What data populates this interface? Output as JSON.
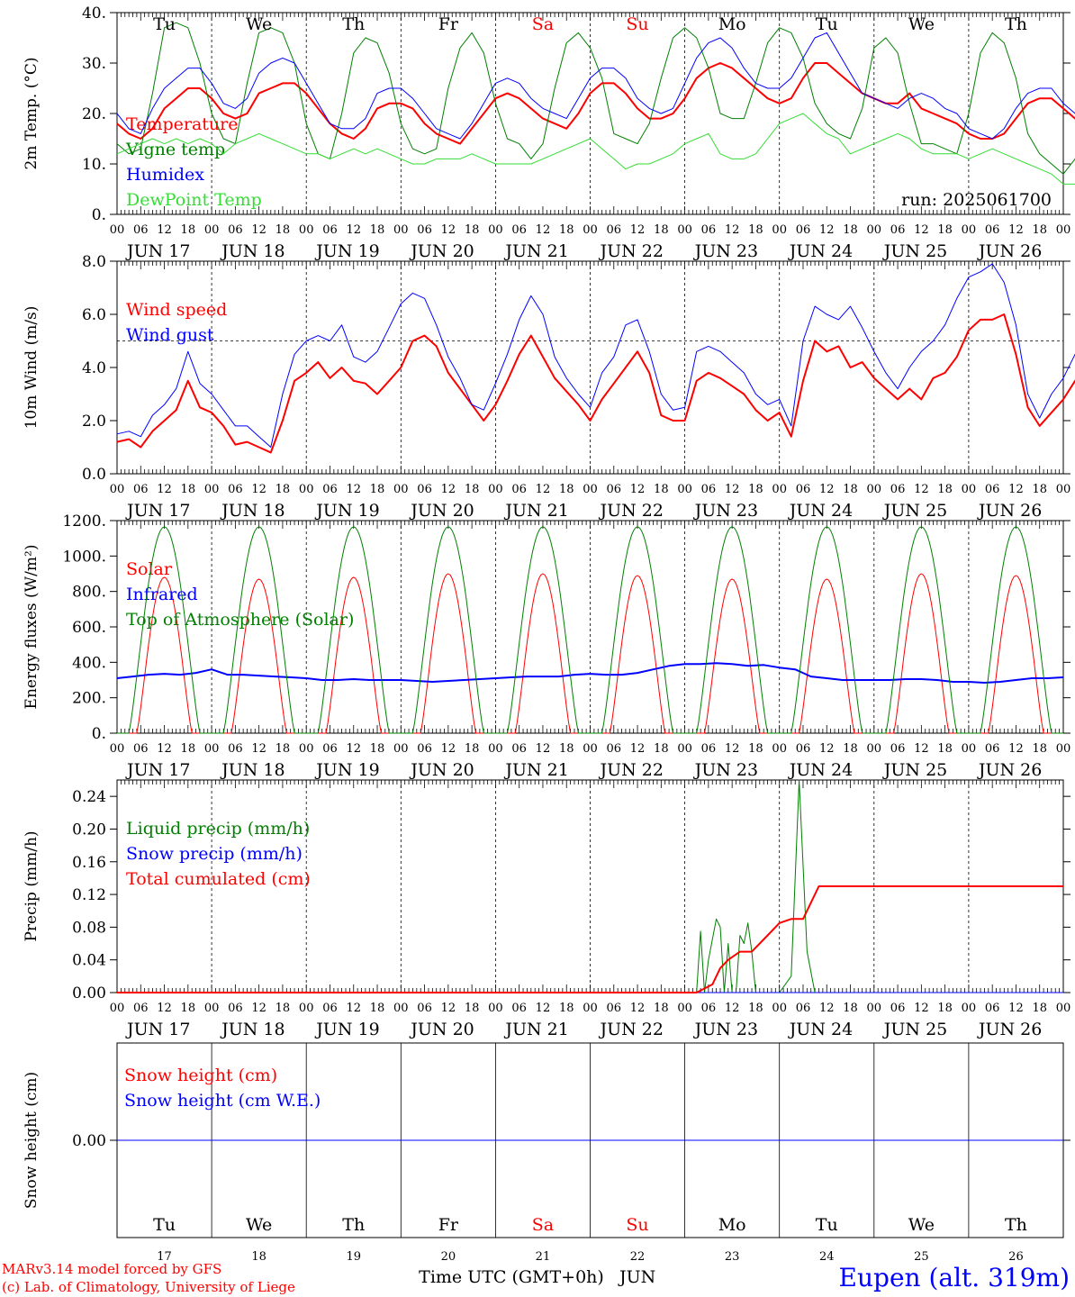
{
  "meta": {
    "run_label": "run: 2025061700",
    "credit_line1": "MARv3.14 model forced by GFS",
    "credit_line2": "(c) Lab. of Climatology, University of Liege",
    "xlabel": "Time UTC (GMT+0h)",
    "xlabel_month": "JUN",
    "station": "Eupen (alt. 319m)"
  },
  "days": {
    "weekday": [
      "Tu",
      "We",
      "Th",
      "Fr",
      "Sa",
      "Su",
      "Mo",
      "Tu",
      "We",
      "Th"
    ],
    "weekend": [
      false,
      false,
      false,
      false,
      true,
      true,
      false,
      false,
      false,
      false
    ],
    "date_labels": [
      "JUN 17",
      "JUN 18",
      "JUN 19",
      "JUN 20",
      "JUN 21",
      "JUN 22",
      "JUN 23",
      "JUN 24",
      "JUN 25",
      "JUN 26"
    ],
    "day_numbers": [
      "17",
      "18",
      "19",
      "20",
      "21",
      "22",
      "23",
      "24",
      "25",
      "26"
    ],
    "hour_labels": [
      "00",
      "06",
      "12",
      "18"
    ],
    "final_hour_label": "00"
  },
  "colors": {
    "red": "#ff0000",
    "green": "#007f00",
    "blue": "#0000ff",
    "lightgreen": "#33dd33",
    "weekend": "#ff0000",
    "axis": "#000000"
  },
  "chart_data": [
    {
      "type": "line",
      "ylabel": "2m Temp. (°C)",
      "ylim": [
        0,
        40
      ],
      "yticks": [
        "0.",
        "10.",
        "20.",
        "30.",
        "40."
      ],
      "yticks_values": [
        0,
        10,
        20,
        30,
        40
      ],
      "grid": "vertical dashed at midnight",
      "legend_position": "top-left",
      "x_hours_step": 3,
      "series": [
        {
          "name": "Temperature",
          "color": "red",
          "width": 2,
          "values": [
            18,
            16,
            15,
            17,
            21,
            23,
            25,
            25,
            23,
            20,
            19,
            20,
            24,
            25,
            26,
            26,
            24,
            21,
            18,
            16,
            15,
            17,
            21,
            22,
            22,
            21,
            18,
            16,
            15,
            14,
            17,
            20,
            23,
            24,
            23,
            21,
            19,
            18,
            17,
            20,
            24,
            26,
            26,
            24,
            21,
            19,
            19,
            20,
            23,
            27,
            29,
            30,
            29,
            27,
            25,
            23,
            22,
            23,
            27,
            30,
            30,
            28,
            26,
            24,
            23,
            22,
            22,
            24,
            21,
            20,
            19,
            18,
            16,
            15,
            15,
            16,
            19,
            22,
            23,
            23,
            21,
            19,
            18,
            16,
            13,
            12,
            14,
            18,
            22,
            25,
            24,
            21,
            18
          ]
        },
        {
          "name": "Vigne temp",
          "color": "green",
          "width": 1,
          "values": [
            14,
            12,
            13,
            24,
            37,
            38,
            37,
            30,
            20,
            15,
            14,
            26,
            36,
            37,
            36,
            30,
            18,
            12,
            11,
            20,
            32,
            35,
            34,
            28,
            18,
            13,
            12,
            13,
            25,
            33,
            36,
            32,
            22,
            15,
            14,
            11,
            14,
            25,
            34,
            36,
            33,
            27,
            16,
            15,
            14,
            18,
            27,
            35,
            37,
            35,
            29,
            20,
            19,
            19,
            26,
            34,
            37,
            36,
            31,
            22,
            18,
            16,
            15,
            21,
            33,
            35,
            32,
            22,
            14,
            14,
            13,
            12,
            20,
            32,
            36,
            34,
            27,
            16,
            12,
            10,
            8,
            11,
            18,
            30,
            37,
            36,
            28,
            17,
            14
          ]
        },
        {
          "name": "Humidex",
          "color": "blue",
          "width": 1,
          "values": [
            20,
            17,
            16,
            21,
            25,
            27,
            29,
            29,
            26,
            22,
            21,
            23,
            28,
            30,
            31,
            30,
            26,
            22,
            18,
            17,
            17,
            19,
            24,
            25,
            25,
            23,
            20,
            17,
            16,
            15,
            18,
            22,
            26,
            27,
            26,
            23,
            21,
            20,
            19,
            23,
            27,
            29,
            29,
            27,
            23,
            21,
            20,
            21,
            26,
            31,
            34,
            35,
            33,
            29,
            26,
            25,
            25,
            27,
            31,
            35,
            36,
            32,
            28,
            24,
            23,
            22,
            21,
            23,
            24,
            23,
            21,
            20,
            17,
            16,
            15,
            17,
            21,
            24,
            25,
            25,
            22,
            20,
            18,
            16,
            13,
            13,
            15,
            20,
            24,
            26,
            25,
            22,
            18
          ]
        },
        {
          "name": "DewPoint Temp",
          "color": "lightgreen",
          "width": 1,
          "values": [
            12,
            13,
            14,
            15,
            14,
            15,
            14,
            15,
            14,
            12,
            14,
            15,
            16,
            15,
            14,
            13,
            12,
            12,
            11,
            12,
            13,
            12,
            13,
            12,
            11,
            10,
            10,
            11,
            11,
            11,
            12,
            11,
            10,
            10,
            10,
            10,
            11,
            12,
            13,
            14,
            15,
            13,
            11,
            9,
            10,
            10,
            11,
            12,
            14,
            15,
            16,
            12,
            11,
            11,
            12,
            15,
            18,
            19,
            20,
            18,
            16,
            15,
            12,
            13,
            14,
            15,
            16,
            15,
            13,
            12,
            12,
            12,
            11,
            12,
            13,
            12,
            11,
            10,
            9,
            8,
            6,
            6,
            8,
            9,
            10,
            9,
            10,
            9,
            8
          ]
        }
      ]
    },
    {
      "type": "line",
      "ylabel": "10m Wind (m/s)",
      "ylim": [
        0,
        8
      ],
      "yticks": [
        "0.0",
        "2.0",
        "4.0",
        "6.0",
        "8.0"
      ],
      "yticks_values": [
        0,
        2,
        4,
        6,
        8
      ],
      "reference_line": 5,
      "grid": "vertical dashed at midnight",
      "legend_position": "top-left",
      "x_hours_step": 3,
      "series": [
        {
          "name": "Wind speed",
          "color": "red",
          "width": 2,
          "values": [
            1.2,
            1.3,
            1.0,
            1.6,
            2.0,
            2.4,
            3.5,
            2.5,
            2.3,
            1.8,
            1.1,
            1.2,
            1.0,
            0.8,
            2.0,
            3.5,
            3.8,
            4.2,
            3.6,
            4.0,
            3.5,
            3.4,
            3.0,
            3.5,
            4.0,
            5.0,
            5.2,
            4.8,
            3.8,
            3.2,
            2.6,
            2.0,
            2.6,
            3.5,
            4.5,
            5.2,
            4.4,
            3.6,
            3.1,
            2.6,
            2.0,
            2.8,
            3.4,
            4.0,
            4.6,
            3.8,
            2.2,
            2.0,
            2.0,
            3.5,
            3.8,
            3.6,
            3.3,
            3.0,
            2.4,
            2.0,
            2.3,
            1.4,
            3.5,
            5.0,
            4.6,
            4.8,
            4.0,
            4.2,
            3.6,
            3.2,
            2.8,
            3.2,
            2.8,
            3.6,
            3.8,
            4.4,
            5.4,
            5.8,
            5.8,
            6.0,
            4.5,
            2.5,
            1.8,
            2.3,
            2.8,
            3.5,
            4.0,
            4.5,
            5.1,
            4.0,
            2.6,
            1.5,
            1.3,
            1.7,
            2.2,
            2.6,
            3.0,
            3.5,
            4.4,
            3.2,
            2.0,
            1.8
          ]
        },
        {
          "name": "Wind gust",
          "color": "blue",
          "width": 1,
          "values": [
            1.5,
            1.6,
            1.4,
            2.2,
            2.6,
            3.2,
            4.6,
            3.4,
            3.0,
            2.4,
            1.8,
            1.8,
            1.4,
            1.0,
            3.0,
            4.5,
            5.0,
            5.2,
            5.0,
            5.6,
            4.4,
            4.2,
            4.6,
            5.5,
            6.4,
            6.8,
            6.6,
            5.6,
            4.4,
            3.6,
            2.6,
            2.4,
            3.4,
            4.5,
            5.8,
            6.7,
            6.0,
            4.4,
            3.6,
            3.0,
            2.5,
            3.8,
            4.4,
            5.6,
            5.8,
            4.6,
            3.0,
            2.4,
            2.5,
            4.6,
            4.8,
            4.6,
            4.2,
            3.8,
            3.0,
            2.6,
            2.8,
            1.8,
            5.0,
            6.3,
            6.0,
            5.8,
            6.3,
            5.5,
            4.6,
            3.8,
            3.2,
            4.0,
            4.6,
            5.0,
            5.6,
            6.6,
            7.4,
            7.6,
            7.9,
            7.2,
            5.6,
            3.0,
            2.1,
            3.0,
            3.6,
            4.5,
            5.4,
            6.2,
            6.6,
            5.2,
            3.6,
            1.8,
            1.6,
            2.3,
            3.0,
            3.5,
            4.0,
            4.6,
            5.8,
            4.6,
            3.0,
            2.2
          ]
        }
      ]
    },
    {
      "type": "line",
      "ylabel": "Energy fluxes (W/m²)",
      "ylim": [
        0,
        1200
      ],
      "yticks": [
        "0.",
        "200.",
        "400.",
        "600.",
        "800.",
        "1000.",
        "1200."
      ],
      "yticks_values": [
        0,
        200,
        400,
        600,
        800,
        1000,
        1200
      ],
      "grid": "vertical dashed at midnight",
      "legend_position": "top-left",
      "series": [
        {
          "name": "Solar",
          "color": "red",
          "width": 1,
          "daily_peak": [
            880,
            870,
            880,
            900,
            900,
            890,
            870,
            870,
            900,
            890
          ],
          "day_length_hours": [
            5,
            19
          ]
        },
        {
          "name": "Infrared",
          "color": "blue",
          "width": 2,
          "values_every_6h": [
            310,
            320,
            330,
            335,
            330,
            340,
            360,
            330,
            330,
            325,
            320,
            315,
            310,
            300,
            300,
            305,
            300,
            300,
            300,
            295,
            290,
            295,
            300,
            305,
            310,
            315,
            320,
            320,
            320,
            330,
            335,
            330,
            330,
            340,
            360,
            380,
            390,
            390,
            395,
            390,
            380,
            385,
            370,
            360,
            320,
            310,
            300,
            300,
            300,
            300,
            305,
            305,
            300,
            290,
            290,
            285,
            290,
            300,
            310,
            310,
            315
          ]
        },
        {
          "name": "Top of Atmosphere (Solar)",
          "color": "green",
          "width": 1,
          "daily_peak": [
            1165,
            1165,
            1165,
            1165,
            1165,
            1165,
            1165,
            1165,
            1165,
            1165
          ],
          "day_length_hours": [
            3,
            21
          ]
        }
      ]
    },
    {
      "type": "line",
      "ylabel": "Precip (mm/h)",
      "ylim": [
        0,
        0.26
      ],
      "yticks": [
        "0.00",
        "0.04",
        "0.08",
        "0.12",
        "0.16",
        "0.20",
        "0.24"
      ],
      "yticks_values": [
        0,
        0.04,
        0.08,
        0.12,
        0.16,
        0.2,
        0.24
      ],
      "grid": "vertical dashed at midnight",
      "legend_position": "top-left",
      "series": [
        {
          "name": "Liquid precip (mm/h)",
          "color": "green",
          "width": 1,
          "points_day_hour_value": [
            [
              6,
              3,
              0
            ],
            [
              6,
              4,
              0.075
            ],
            [
              6,
              5,
              0.0
            ],
            [
              6,
              6,
              0.04
            ],
            [
              6,
              8,
              0.09
            ],
            [
              6,
              9,
              0.08
            ],
            [
              6,
              10,
              0
            ],
            [
              6,
              11,
              0.06
            ],
            [
              6,
              12,
              0
            ],
            [
              6,
              13,
              0
            ],
            [
              6,
              14,
              0.07
            ],
            [
              6,
              15,
              0.06
            ],
            [
              6,
              16,
              0.085
            ],
            [
              6,
              17,
              0.05
            ],
            [
              6,
              18,
              0
            ],
            [
              6,
              21,
              0
            ],
            [
              7,
              0,
              0
            ],
            [
              7,
              3,
              0.02
            ],
            [
              7,
              5,
              0.26
            ],
            [
              7,
              7,
              0.05
            ],
            [
              7,
              9,
              0
            ]
          ]
        },
        {
          "name": "Snow precip (mm/h)",
          "color": "blue",
          "width": 1,
          "points_day_hour_value": [
            [
              0,
              0,
              0
            ],
            [
              10,
              0,
              0
            ]
          ]
        },
        {
          "name": "Total cumulated (cm)",
          "color": "red",
          "width": 2,
          "points_day_hour_value": [
            [
              0,
              0,
              0
            ],
            [
              6,
              3,
              0
            ],
            [
              6,
              5,
              0.005
            ],
            [
              6,
              7,
              0.01
            ],
            [
              6,
              9,
              0.03
            ],
            [
              6,
              11,
              0.04
            ],
            [
              6,
              14,
              0.05
            ],
            [
              6,
              17,
              0.05
            ],
            [
              6,
              21,
              0.07
            ],
            [
              7,
              0,
              0.085
            ],
            [
              7,
              3,
              0.09
            ],
            [
              7,
              6,
              0.09
            ],
            [
              7,
              8,
              0.11
            ],
            [
              7,
              10,
              0.13
            ],
            [
              10,
              0,
              0.13
            ]
          ]
        }
      ]
    },
    {
      "type": "line",
      "ylabel": "Snow height (cm)",
      "ylim": [
        -0.01,
        0.01
      ],
      "yticks": [
        "0.00"
      ],
      "yticks_values": [
        0
      ],
      "grid": "vertical solid at midnight",
      "legend_position": "top-left",
      "series": [
        {
          "name": "Snow height (cm)",
          "color": "red",
          "width": 1,
          "values": [
            0,
            0
          ]
        },
        {
          "name": "Snow height (cm W.E.)",
          "color": "blue",
          "width": 1,
          "values": [
            0,
            0
          ]
        }
      ]
    }
  ]
}
